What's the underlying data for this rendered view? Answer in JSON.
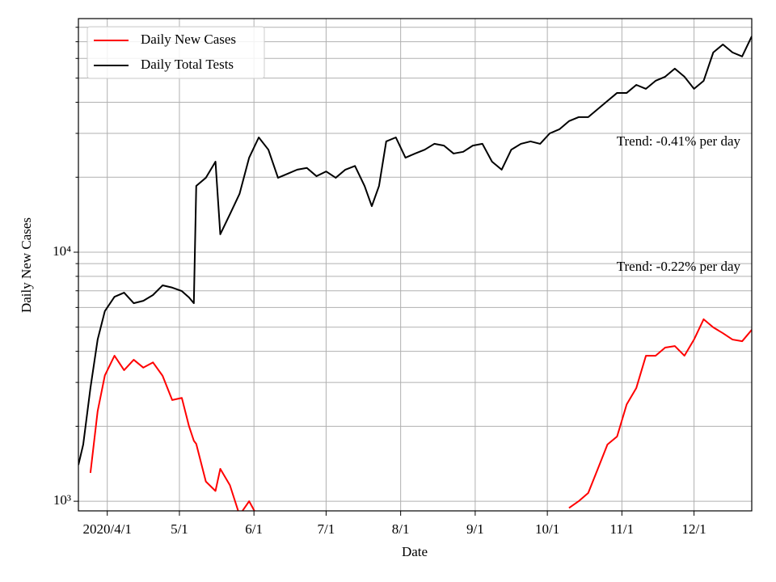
{
  "chart_data": {
    "type": "line",
    "xlabel": "Date",
    "ylabel": "Daily New Cases",
    "yscale": "log",
    "grid": true,
    "legend_loc": "upper left",
    "xlim": [
      "2020-03-20",
      "2020-12-25"
    ],
    "xticks": [
      {
        "value": "2020-04-01",
        "label": "2020/4/1"
      },
      {
        "value": "2020-05-01",
        "label": "5/1"
      },
      {
        "value": "2020-06-01",
        "label": "6/1"
      },
      {
        "value": "2020-07-01",
        "label": "7/1"
      },
      {
        "value": "2020-08-01",
        "label": "8/1"
      },
      {
        "value": "2020-09-01",
        "label": "9/1"
      },
      {
        "value": "2020-10-01",
        "label": "10/1"
      },
      {
        "value": "2020-11-01",
        "label": "11/1"
      },
      {
        "value": "2020-12-01",
        "label": "12/1"
      }
    ],
    "ylim": [
      915,
      86700
    ],
    "yticks": [
      {
        "value": 1000,
        "label": "10³"
      },
      {
        "value": 10000,
        "label": "10⁴"
      }
    ],
    "yminorticks": [
      2000,
      3000,
      4000,
      5000,
      6000,
      7000,
      8000,
      9000,
      20000,
      30000,
      40000,
      50000,
      60000,
      70000,
      80000
    ],
    "annotations": [
      "Trend: -0.41% per day",
      "Trend: -0.22% per day"
    ],
    "x": [
      "2020-03-20",
      "2020-03-22",
      "2020-03-25",
      "2020-03-28",
      "2020-03-31",
      "2020-04-04",
      "2020-04-08",
      "2020-04-12",
      "2020-04-16",
      "2020-04-20",
      "2020-04-24",
      "2020-04-28",
      "2020-05-02",
      "2020-05-05",
      "2020-05-07",
      "2020-05-08",
      "2020-05-12",
      "2020-05-16",
      "2020-05-18",
      "2020-05-22",
      "2020-05-26",
      "2020-05-30",
      "2020-06-03",
      "2020-06-07",
      "2020-06-11",
      "2020-06-15",
      "2020-06-19",
      "2020-06-23",
      "2020-06-27",
      "2020-07-01",
      "2020-07-05",
      "2020-07-09",
      "2020-07-13",
      "2020-07-17",
      "2020-07-20",
      "2020-07-23",
      "2020-07-26",
      "2020-07-30",
      "2020-08-03",
      "2020-08-07",
      "2020-08-11",
      "2020-08-15",
      "2020-08-19",
      "2020-08-23",
      "2020-08-27",
      "2020-08-31",
      "2020-09-04",
      "2020-09-08",
      "2020-09-12",
      "2020-09-16",
      "2020-09-20",
      "2020-09-24",
      "2020-09-28",
      "2020-10-02",
      "2020-10-06",
      "2020-10-10",
      "2020-10-14",
      "2020-10-18",
      "2020-10-22",
      "2020-10-26",
      "2020-10-30",
      "2020-11-03",
      "2020-11-07",
      "2020-11-11",
      "2020-11-15",
      "2020-11-19",
      "2020-11-23",
      "2020-11-27",
      "2020-12-01",
      "2020-12-05",
      "2020-12-09",
      "2020-12-13",
      "2020-12-17",
      "2020-12-21",
      "2020-12-25"
    ],
    "series": [
      {
        "name": "Daily New Cases",
        "color": "#ff0000",
        "values": [
          null,
          null,
          1300,
          2300,
          3200,
          3840,
          3360,
          3700,
          3440,
          3610,
          3190,
          2550,
          2600,
          2000,
          1750,
          1700,
          1200,
          1100,
          1350,
          1160,
          880,
          1000,
          850,
          null,
          null,
          null,
          null,
          null,
          null,
          null,
          null,
          null,
          null,
          null,
          null,
          null,
          null,
          null,
          null,
          null,
          null,
          null,
          null,
          null,
          null,
          null,
          null,
          null,
          null,
          null,
          null,
          null,
          null,
          null,
          null,
          940,
          1000,
          1080,
          1350,
          1690,
          1820,
          2450,
          2850,
          3840,
          3840,
          4140,
          4200,
          3840,
          4460,
          5380,
          4990,
          4730,
          4460,
          4390,
          4880
        ]
      },
      {
        "name": "Daily Total Tests",
        "color": "#000000",
        "values": [
          1400,
          1690,
          2850,
          4460,
          5800,
          6620,
          6880,
          6240,
          6380,
          6730,
          7360,
          7210,
          6980,
          6580,
          6240,
          18450,
          19900,
          23100,
          11800,
          14200,
          17150,
          23970,
          28900,
          25800,
          19900,
          20650,
          21450,
          21800,
          20200,
          21100,
          19900,
          21450,
          22200,
          18450,
          15300,
          18450,
          27860,
          28900,
          23970,
          24900,
          25800,
          27240,
          26800,
          24900,
          25300,
          26800,
          27240,
          23100,
          21450,
          25800,
          27240,
          27860,
          27240,
          30000,
          31150,
          33600,
          34860,
          34860,
          37580,
          40490,
          43610,
          43610,
          46980,
          45290,
          48780,
          50660,
          54580,
          50660,
          45290,
          48780,
          63400,
          68240,
          63400,
          61100,
          73600
        ]
      }
    ]
  }
}
